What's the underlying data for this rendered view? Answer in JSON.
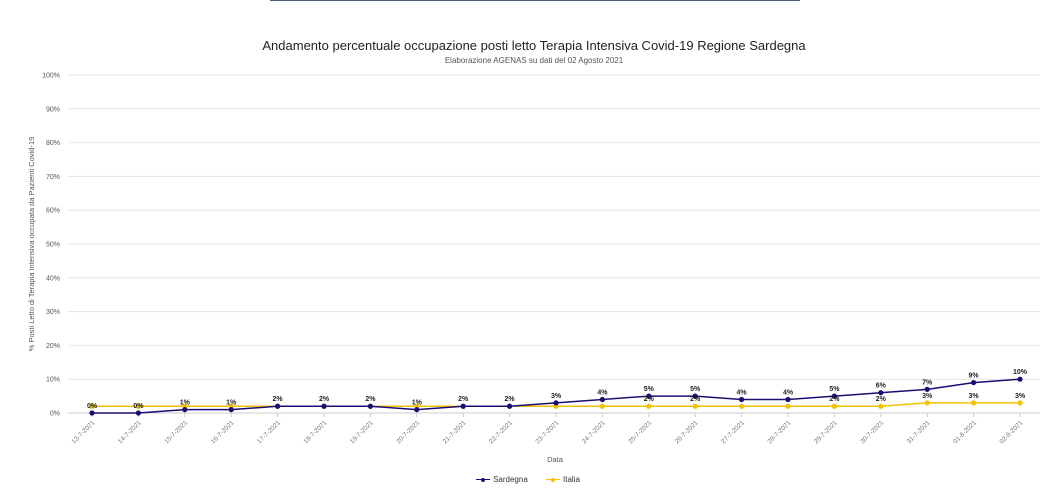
{
  "chart_data": {
    "type": "line",
    "title": "Andamento percentuale occupazione posti letto Terapia Intensiva Covid-19 Regione Sardegna",
    "subtitle": "Elaborazione AGENAS su dati del 02 Agosto 2021",
    "xlabel": "Data",
    "ylabel": "% Posti Letto di Terapia Intensiva occupata da Pazienti Covid-19",
    "ylim": [
      0,
      100
    ],
    "yticks": [
      "0%",
      "10%",
      "20%",
      "30%",
      "40%",
      "50%",
      "60%",
      "70%",
      "80%",
      "90%",
      "100%"
    ],
    "grid": true,
    "legend_position": "bottom",
    "categories": [
      "13-7-2021",
      "14-7-2021",
      "15-7-2021",
      "16-7-2021",
      "17-7-2021",
      "18-7-2021",
      "19-7-2021",
      "20-7-2021",
      "21-7-2021",
      "22-7-2021",
      "23-7-2021",
      "24-7-2021",
      "25-7-2021",
      "26-7-2021",
      "27-7-2021",
      "28-7-2021",
      "29-7-2021",
      "30-7-2021",
      "31-7-2021",
      "01-8-2021",
      "02-8-2021"
    ],
    "series": [
      {
        "name": "Sardegna",
        "color": "#1a0d73",
        "values": [
          0,
          0,
          1,
          1,
          2,
          2,
          2,
          1,
          2,
          2,
          3,
          4,
          5,
          5,
          4,
          4,
          5,
          6,
          7,
          9,
          10
        ],
        "labels": [
          "0%",
          "0%",
          "1%",
          "1%",
          "2%",
          "2%",
          "2%",
          "1%",
          "2%",
          "2%",
          "3%",
          "4%",
          "5%",
          "5%",
          "4%",
          "4%",
          "5%",
          "6%",
          "7%",
          "9%",
          "10%"
        ]
      },
      {
        "name": "Italia",
        "color": "#f2c200",
        "values": [
          2,
          2,
          2,
          2,
          2,
          2,
          2,
          2,
          2,
          2,
          2,
          2,
          2,
          2,
          2,
          2,
          2,
          2,
          3,
          3,
          3
        ],
        "labels": [
          "",
          "",
          "",
          "",
          "",
          "",
          "",
          "",
          "",
          "",
          "",
          "",
          "2%",
          "2%",
          "",
          "",
          "2%",
          "2%",
          "3%",
          "3%",
          "3%"
        ]
      }
    ]
  }
}
